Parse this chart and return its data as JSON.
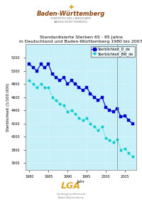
{
  "title_line1": "Standardisierte Sterben 65 - 85 Jahre",
  "title_line2": "in Deutschland und Baden-Württemberg 1980 bis 2007",
  "xlabel": "Jahr",
  "ylabel": "Sterblichkeit (1/100.000)",
  "bg_color": "#c8f0f8",
  "plot_area_color": "#d8f4fc",
  "years": [
    1980,
    1981,
    1982,
    1983,
    1984,
    1985,
    1986,
    1987,
    1988,
    1989,
    1990,
    1991,
    1992,
    1993,
    1994,
    1995,
    1996,
    1997,
    1998,
    1999,
    2000,
    2001,
    2002,
    2003,
    2004,
    2005,
    2006,
    2007
  ],
  "germany_values": [
    5100,
    5050,
    5000,
    5100,
    5050,
    5100,
    4950,
    4900,
    4850,
    4900,
    4800,
    4850,
    4800,
    4750,
    4700,
    4750,
    4650,
    4600,
    4550,
    4600,
    4450,
    4400,
    4380,
    4420,
    4300,
    4320,
    4250,
    4200
  ],
  "bw_values": [
    4850,
    4800,
    4750,
    4800,
    4750,
    4750,
    4600,
    4550,
    4500,
    4480,
    4380,
    4400,
    4350,
    4280,
    4250,
    4280,
    4200,
    4150,
    4100,
    4150,
    3980,
    3950,
    3920,
    3960,
    3800,
    3820,
    3750,
    3700
  ],
  "germany_color": "#0000cc",
  "bw_color": "#00cccc",
  "legend_germany": "Sterblichkeit_D_de",
  "legend_bw": "Sterblichkeit_BW_de",
  "ylim_min": 3500,
  "ylim_max": 5400,
  "vline_x": 2003,
  "yticks": [
    3600,
    3800,
    4000,
    4200,
    4400,
    4600,
    4800,
    5000,
    5200
  ],
  "xticks": [
    1980,
    1985,
    1990,
    1995,
    2000,
    2005
  ],
  "title_fontsize": 4.5,
  "axis_fontsize": 4,
  "tick_fontsize": 3.5,
  "legend_fontsize": 3.5,
  "marker_size": 3,
  "line_width": 0.8,
  "header_text": "Baden-Württemberg",
  "footer_text": "LGA"
}
